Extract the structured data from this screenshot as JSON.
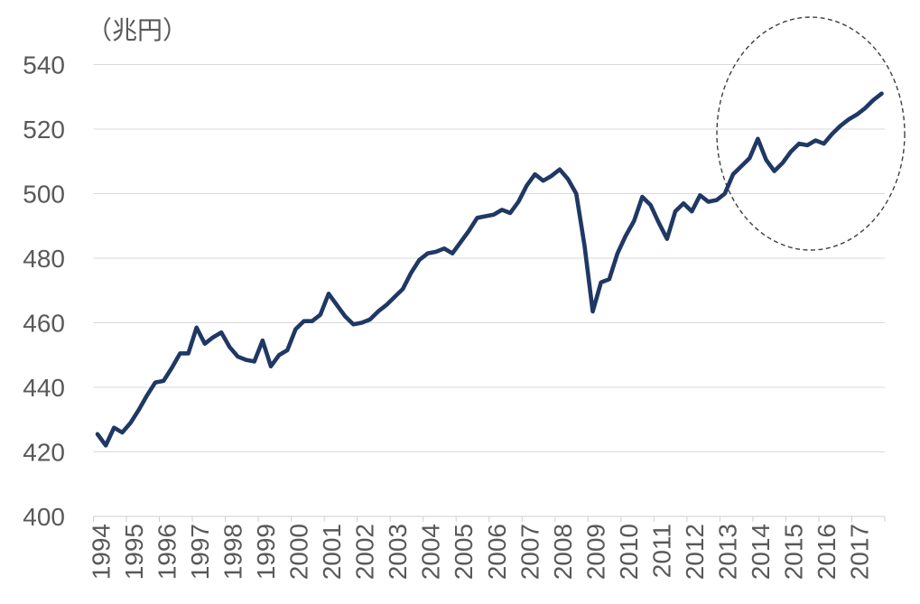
{
  "chart_data": {
    "type": "line",
    "unit_label": "（兆円）",
    "x_frequency": "quarterly",
    "x_start": "1994Q1",
    "x_end": "2017Q4",
    "x_tick_labels": [
      "1994",
      "1995",
      "1996",
      "1997",
      "1998",
      "1999",
      "2000",
      "2001",
      "2002",
      "2003",
      "2004",
      "2005",
      "2006",
      "2007",
      "2008",
      "2009",
      "2010",
      "2011",
      "2012",
      "2013",
      "2014",
      "2015",
      "2016",
      "2017"
    ],
    "y_ticks": [
      400,
      420,
      440,
      460,
      480,
      500,
      520,
      540
    ],
    "ylim": [
      400,
      540
    ],
    "grid": true,
    "legend": "none",
    "values": [
      425.5,
      422,
      427.5,
      426,
      429,
      433,
      437.5,
      441.5,
      442,
      446,
      450.5,
      450.5,
      458.5,
      453.5,
      455.5,
      457,
      452.5,
      449.5,
      448.5,
      448,
      454.5,
      446.5,
      450,
      451.5,
      458,
      460.5,
      460.5,
      462.5,
      469,
      465.5,
      462,
      459.5,
      460,
      461,
      463.5,
      465.5,
      468,
      470.5,
      475.5,
      479.5,
      481.5,
      482,
      483,
      481.5,
      485,
      488.5,
      492.5,
      493,
      493.5,
      495,
      494,
      497.5,
      502.5,
      506,
      504,
      505.5,
      507.5,
      504.5,
      500,
      484,
      463.5,
      472.5,
      473.5,
      481.5,
      487,
      491.5,
      499,
      496.5,
      491,
      486,
      494.5,
      497,
      494.5,
      499.5,
      497.5,
      498,
      500,
      506,
      508.5,
      511,
      517,
      510.5,
      507,
      509.5,
      513,
      515.5,
      515,
      516.5,
      515.5,
      518.5,
      521,
      523,
      524.5,
      526.5,
      529,
      531
    ],
    "annotation": {
      "shape": "ellipse",
      "style": "dashed",
      "highlighted_period": "2013-2017"
    },
    "colors": {
      "line": "#1f3864",
      "gridline": "#d9d9d9",
      "axis": "#cfcfcf",
      "text": "#595959",
      "annotation": "#3f3f3f"
    }
  }
}
